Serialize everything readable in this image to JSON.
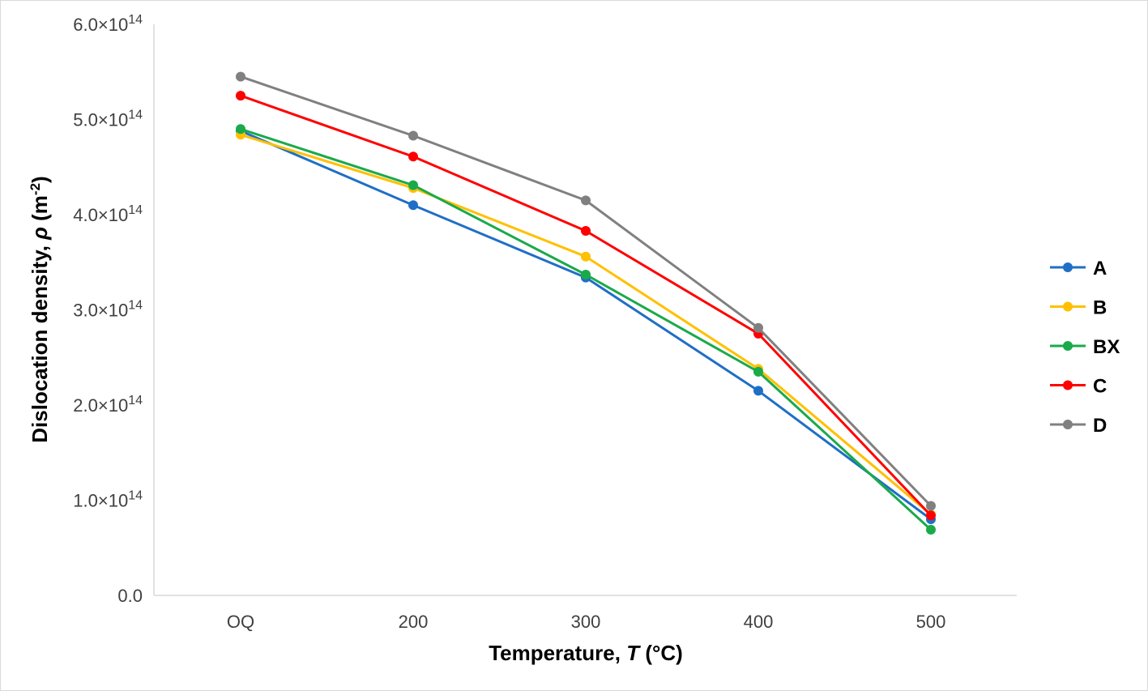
{
  "chart_data": {
    "type": "line",
    "categories": [
      "OQ",
      "200",
      "300",
      "400",
      "500"
    ],
    "series": [
      {
        "name": "A",
        "color": "#1f6fc6",
        "values": [
          488000000000000.0,
          410000000000000.0,
          334000000000000.0,
          215000000000000.0,
          80000000000000.0
        ]
      },
      {
        "name": "B",
        "color": "#ffc000",
        "values": [
          484000000000000.0,
          428000000000000.0,
          356000000000000.0,
          238000000000000.0,
          85000000000000.0
        ]
      },
      {
        "name": "BX",
        "color": "#1aaa4a",
        "values": [
          490000000000000.0,
          431000000000000.0,
          337000000000000.0,
          235000000000000.0,
          69000000000000.0
        ]
      },
      {
        "name": "C",
        "color": "#ff0000",
        "values": [
          525000000000000.0,
          461000000000000.0,
          383000000000000.0,
          275000000000000.0,
          84000000000000.0
        ]
      },
      {
        "name": "D",
        "color": "#808080",
        "values": [
          545000000000000.0,
          483000000000000.0,
          415000000000000.0,
          281000000000000.0,
          94000000000000.0
        ]
      }
    ],
    "yticks": [
      0,
      100000000000000.0,
      200000000000000.0,
      300000000000000.0,
      400000000000000.0,
      500000000000000.0,
      600000000000000.0
    ],
    "ytick_mantissas": [
      "0.0",
      "1.0×10",
      "2.0×10",
      "3.0×10",
      "4.0×10",
      "5.0×10",
      "6.0×10"
    ],
    "ytick_exponent": "14",
    "ylim": [
      0,
      600000000000000.0
    ],
    "xlabel_main": "Temperature, ",
    "xlabel_italic": "T",
    "xlabel_unit": " (°C)",
    "ylabel_main": "Dislocation density, ",
    "ylabel_symbol": "ρ",
    "ylabel_unit_open": " (m",
    "ylabel_unit_sup": "-2",
    "ylabel_unit_close": ")",
    "grid": false,
    "legend_position": "right"
  }
}
